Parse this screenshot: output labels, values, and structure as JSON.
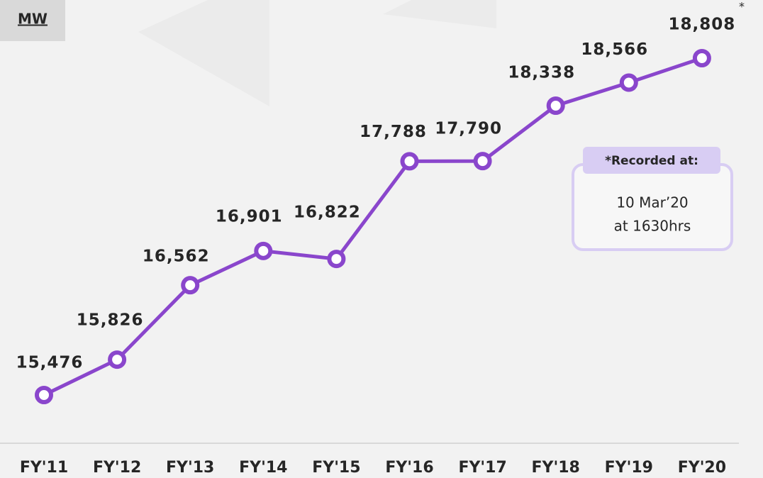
{
  "chart_data": {
    "type": "line",
    "y_label": "MW",
    "categories": [
      "FY'11",
      "FY'12",
      "FY'13",
      "FY'14",
      "FY'15",
      "FY'16",
      "FY'17",
      "FY'18",
      "FY'19",
      "FY'20"
    ],
    "values": [
      15476,
      15826,
      16562,
      16901,
      16822,
      17788,
      17790,
      18338,
      18566,
      18808
    ],
    "value_labels": [
      "15,476",
      "15,826",
      "16,562",
      "16,901",
      "16,822",
      "17,788",
      "17,790",
      "18,338",
      "18,566",
      "18,808"
    ],
    "color": "#8a46cc",
    "annotations": {
      "asterisk": "*",
      "callout_title": "*Recorded at:",
      "callout_lines": [
        "10 Mar’20",
        "at 1630hrs"
      ]
    }
  }
}
